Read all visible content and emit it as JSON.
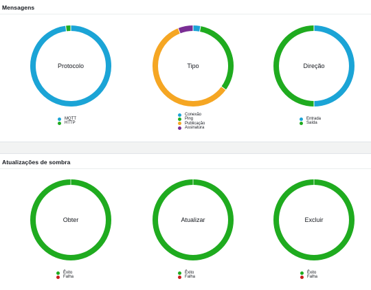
{
  "panels": {
    "messages": {
      "title": "Mensagens"
    },
    "shadow": {
      "title": "Atualizações de sombra"
    }
  },
  "colors": {
    "blue": "#1ba4d6",
    "green": "#1fab1f",
    "orange": "#f5a623",
    "purple": "#7a2e94",
    "red": "#c81e1e"
  },
  "chart_data": [
    {
      "type": "pie",
      "title": "Protocolo",
      "panel": "messages",
      "series": [
        {
          "name": "MQTT",
          "value": 98,
          "color": "#1ba4d6"
        },
        {
          "name": "HTTP",
          "value": 2,
          "color": "#1fab1f"
        }
      ]
    },
    {
      "type": "pie",
      "title": "Tipo",
      "panel": "messages",
      "series": [
        {
          "name": "Conexão",
          "value": 3,
          "color": "#1ba4d6"
        },
        {
          "name": "Ping",
          "value": 32,
          "color": "#1fab1f"
        },
        {
          "name": "Publicação",
          "value": 59,
          "color": "#f5a623"
        },
        {
          "name": "Assinatura",
          "value": 6,
          "color": "#7a2e94"
        }
      ]
    },
    {
      "type": "pie",
      "title": "Direção",
      "panel": "messages",
      "series": [
        {
          "name": "Entrada",
          "value": 50,
          "color": "#1ba4d6"
        },
        {
          "name": "Saída",
          "value": 50,
          "color": "#1fab1f"
        }
      ]
    },
    {
      "type": "pie",
      "title": "Obter",
      "panel": "shadow",
      "series": [
        {
          "name": "Êxito",
          "value": 100,
          "color": "#1fab1f"
        },
        {
          "name": "Falha",
          "value": 0,
          "color": "#c81e1e"
        }
      ]
    },
    {
      "type": "pie",
      "title": "Atualizar",
      "panel": "shadow",
      "series": [
        {
          "name": "Êxito",
          "value": 100,
          "color": "#1fab1f"
        },
        {
          "name": "Falha",
          "value": 0,
          "color": "#c81e1e"
        }
      ]
    },
    {
      "type": "pie",
      "title": "Excluir",
      "panel": "shadow",
      "series": [
        {
          "name": "Êxito",
          "value": 100,
          "color": "#1fab1f"
        },
        {
          "name": "Falha",
          "value": 0,
          "color": "#c81e1e"
        }
      ]
    }
  ]
}
